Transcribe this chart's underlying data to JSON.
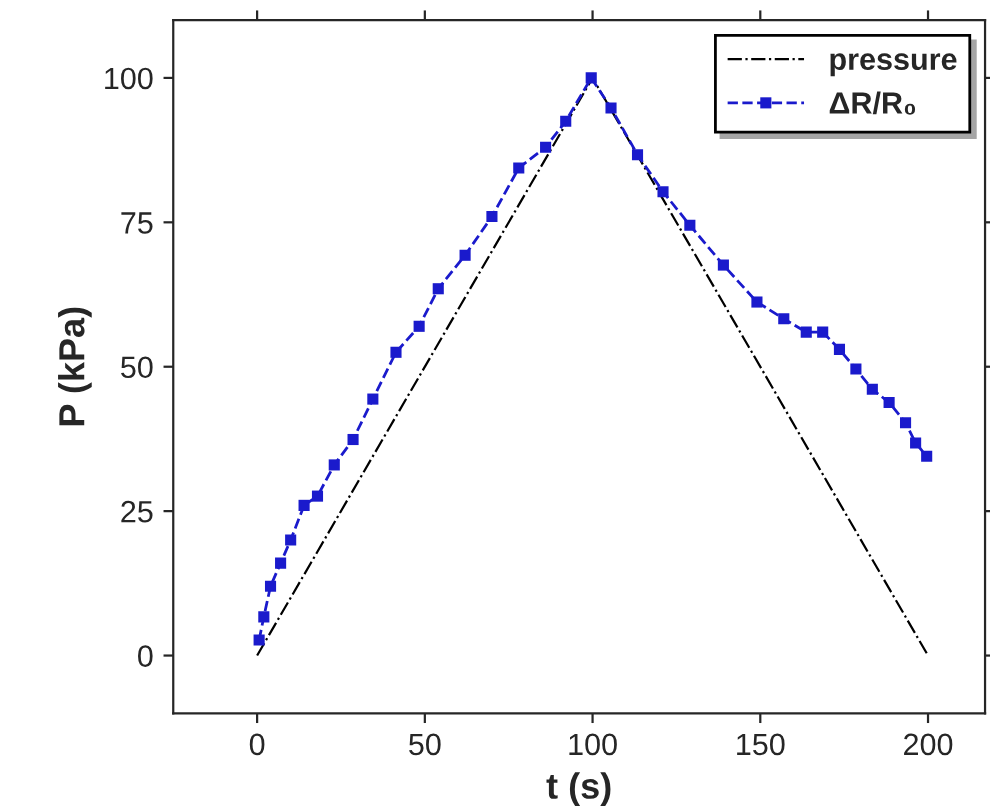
{
  "chart_data": {
    "type": "line",
    "xlabel": "t (s)",
    "ylabel": "P (kPa)",
    "xlim": [
      -25,
      217
    ],
    "ylim": [
      -10,
      110
    ],
    "xticks": [
      0,
      50,
      100,
      150,
      200
    ],
    "yticks": [
      0,
      25,
      50,
      75,
      100
    ],
    "grid": false,
    "legend": "top right",
    "series": [
      {
        "name": "pressure",
        "color": "#000000",
        "line_style": "dashdot",
        "marker": "none",
        "x": [
          0,
          100,
          200
        ],
        "values": [
          0,
          100,
          0
        ]
      },
      {
        "name": "ΔR/R₀",
        "color": "#1a1acc",
        "line_style": "dashed",
        "marker": "square",
        "x": [
          0.6,
          2,
          4,
          7,
          10,
          14,
          18,
          23,
          28.6,
          34.5,
          41.4,
          48.3,
          54,
          62,
          70,
          78,
          86,
          92,
          99.6,
          105.5,
          113.4,
          121,
          129,
          139,
          149,
          157,
          163.7,
          168.6,
          173.6,
          178.5,
          183.4,
          188.4,
          193.3,
          196.3,
          199.6
        ],
        "values": [
          2.7,
          6.7,
          12,
          16,
          20,
          26,
          27.6,
          33,
          37.4,
          44.4,
          52.5,
          57,
          63.5,
          69.3,
          76,
          84.4,
          88,
          92.5,
          100,
          94.8,
          86.7,
          80.3,
          74.5,
          67.6,
          61.2,
          58.3,
          56,
          56,
          53,
          49.6,
          46.1,
          43.8,
          40.3,
          36.8,
          34.5
        ]
      }
    ]
  }
}
